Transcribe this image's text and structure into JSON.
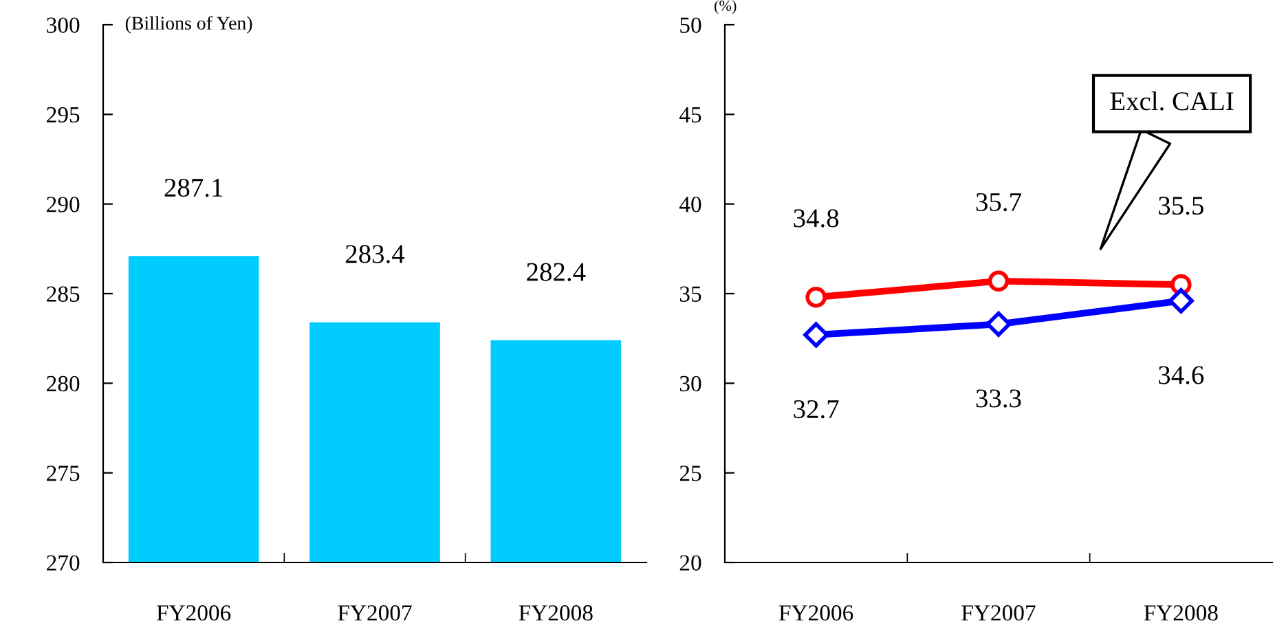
{
  "chart_data": [
    {
      "type": "bar",
      "categories": [
        "FY2006",
        "FY2007",
        "FY2008"
      ],
      "values": [
        287.1,
        283.4,
        282.4
      ],
      "color": "#00ccff",
      "ylim": [
        270,
        300
      ],
      "yticks": [
        270,
        275,
        280,
        285,
        290,
        295,
        300
      ],
      "data_labels": true,
      "grid": false,
      "legend": false,
      "annotations": [
        "(Billions of Yen)"
      ]
    },
    {
      "type": "line",
      "categories": [
        "FY2006",
        "FY2007",
        "FY2008"
      ],
      "series": [
        {
          "color": "#ff0000",
          "marker": "circle",
          "values": [
            34.8,
            35.7,
            35.5
          ]
        },
        {
          "color": "#0000ff",
          "marker": "diamond",
          "values": [
            32.7,
            33.3,
            34.6
          ]
        }
      ],
      "ylim": [
        20,
        50
      ],
      "yticks": [
        20,
        25,
        30,
        35,
        40,
        45,
        50
      ],
      "data_labels": true,
      "grid": false,
      "legend": false,
      "annotations": [
        "(%)",
        "Excl. CALI"
      ]
    }
  ]
}
